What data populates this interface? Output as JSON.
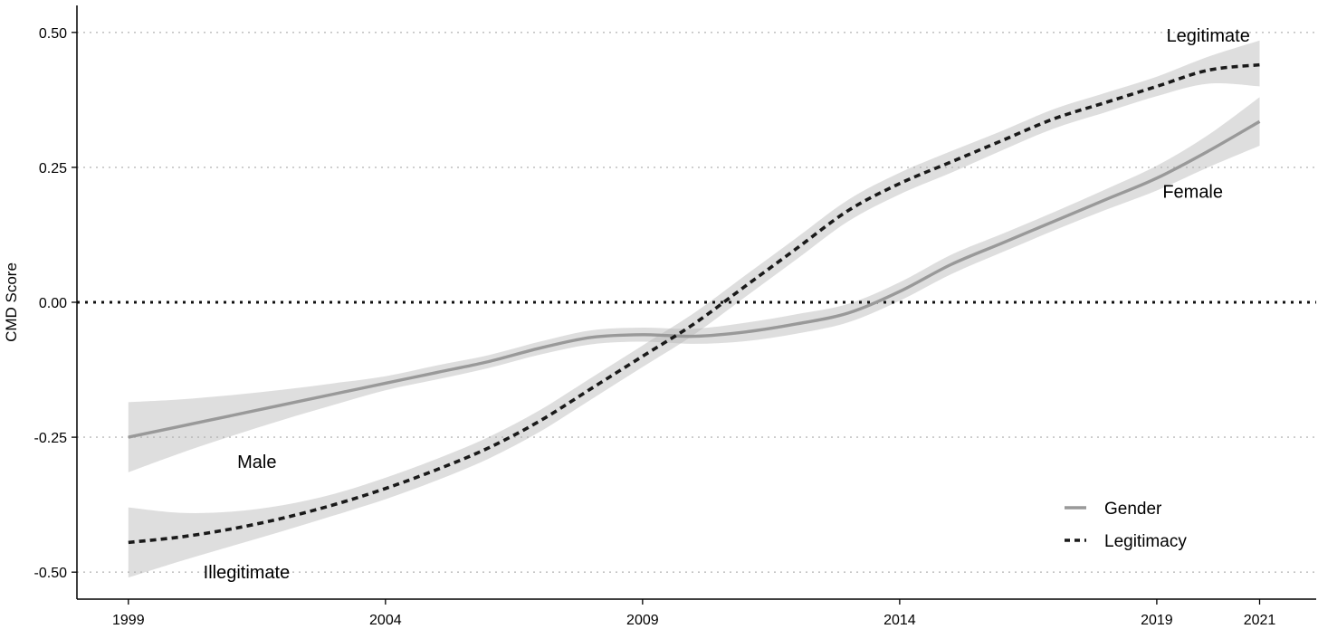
{
  "chart_data": {
    "type": "line",
    "xlabel": "",
    "ylabel": "CMD Score",
    "xlim": [
      1998.0,
      2022.1
    ],
    "ylim": [
      -0.55,
      0.55
    ],
    "xticks": [
      "1999",
      "2004",
      "2009",
      "2014",
      "2019",
      "2021"
    ],
    "xtick_values": [
      1999,
      2004,
      2009,
      2014,
      2019,
      2021
    ],
    "yticks": [
      "0.50",
      "0.25",
      "0.00",
      "-0.25",
      "-0.50"
    ],
    "ytick_values": [
      0.5,
      0.25,
      0.0,
      -0.25,
      -0.5
    ],
    "grid": "horizontal dotted",
    "reference_line": 0.0,
    "legend_position": "bottom-right",
    "series": [
      {
        "name": "Gender",
        "line_style": "solid",
        "color": "#999999",
        "x": [
          1999,
          2000,
          2001,
          2002,
          2003,
          2004,
          2005,
          2006,
          2007,
          2008,
          2009,
          2010,
          2011,
          2012,
          2013,
          2014,
          2015,
          2016,
          2017,
          2018,
          2019,
          2020,
          2021
        ],
        "values": [
          -0.25,
          -0.23,
          -0.21,
          -0.19,
          -0.17,
          -0.15,
          -0.13,
          -0.11,
          -0.085,
          -0.065,
          -0.06,
          -0.063,
          -0.055,
          -0.04,
          -0.02,
          0.02,
          0.07,
          0.11,
          0.15,
          0.19,
          0.23,
          0.28,
          0.335
        ],
        "ci_lower": [
          -0.315,
          -0.28,
          -0.248,
          -0.218,
          -0.19,
          -0.163,
          -0.143,
          -0.122,
          -0.097,
          -0.078,
          -0.073,
          -0.077,
          -0.072,
          -0.058,
          -0.037,
          0.003,
          0.052,
          0.093,
          0.133,
          0.171,
          0.207,
          0.25,
          0.29
        ],
        "ci_upper": [
          -0.185,
          -0.18,
          -0.172,
          -0.162,
          -0.15,
          -0.137,
          -0.117,
          -0.098,
          -0.073,
          -0.052,
          -0.047,
          -0.049,
          -0.038,
          -0.022,
          -0.003,
          0.037,
          0.088,
          0.127,
          0.167,
          0.209,
          0.253,
          0.31,
          0.38
        ],
        "annotations": [
          {
            "text": "Male",
            "x": 2001.5,
            "y": -0.295
          },
          {
            "text": "Female",
            "x": 2019.7,
            "y": 0.205
          }
        ]
      },
      {
        "name": "Legitimacy",
        "line_style": "dashed",
        "color": "#1a1a1a",
        "x": [
          1999,
          2000,
          2001,
          2002,
          2003,
          2004,
          2005,
          2006,
          2007,
          2008,
          2009,
          2010,
          2011,
          2012,
          2013,
          2014,
          2015,
          2016,
          2017,
          2018,
          2019,
          2020,
          2021
        ],
        "values": [
          -0.445,
          -0.435,
          -0.42,
          -0.4,
          -0.375,
          -0.345,
          -0.31,
          -0.27,
          -0.22,
          -0.16,
          -0.1,
          -0.04,
          0.03,
          0.1,
          0.17,
          0.22,
          0.26,
          0.3,
          0.34,
          0.37,
          0.4,
          0.43,
          0.44
        ],
        "ci_lower": [
          -0.51,
          -0.48,
          -0.452,
          -0.424,
          -0.395,
          -0.365,
          -0.33,
          -0.29,
          -0.24,
          -0.18,
          -0.12,
          -0.06,
          0.01,
          0.08,
          0.15,
          0.2,
          0.24,
          0.282,
          0.322,
          0.352,
          0.382,
          0.405,
          0.4
        ],
        "ci_upper": [
          -0.38,
          -0.39,
          -0.388,
          -0.376,
          -0.355,
          -0.325,
          -0.29,
          -0.25,
          -0.2,
          -0.14,
          -0.08,
          -0.02,
          0.05,
          0.12,
          0.19,
          0.24,
          0.28,
          0.318,
          0.358,
          0.388,
          0.418,
          0.455,
          0.485
        ],
        "annotations": [
          {
            "text": "Illegitimate",
            "x": 2001.3,
            "y": -0.5
          },
          {
            "text": "Legitimate",
            "x": 2020.0,
            "y": 0.495
          }
        ]
      }
    ]
  }
}
